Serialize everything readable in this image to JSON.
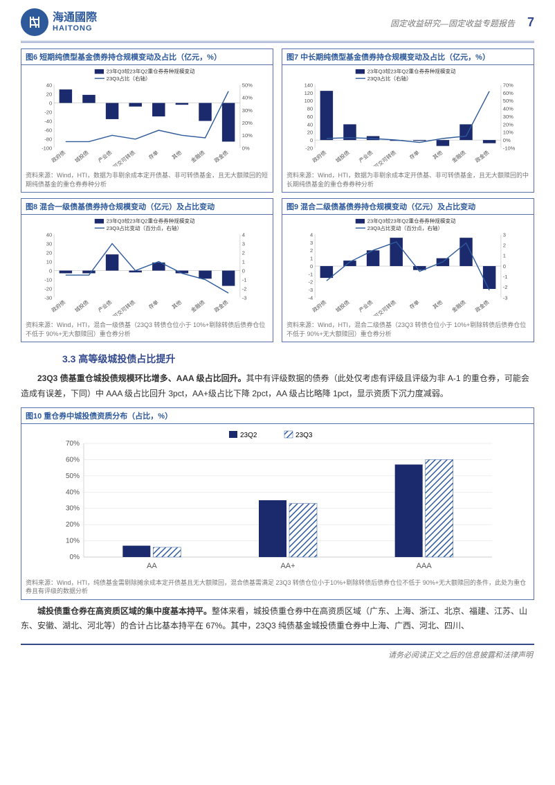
{
  "header": {
    "brand_cn": "海通國際",
    "brand_en": "HAITONG",
    "doc_title": "固定收益研究—固定收益专题报告",
    "page_no": "7"
  },
  "colors": {
    "brand": "#2e5a9c",
    "bar": "#1a2a6c",
    "line": "#2e5a9c",
    "border": "#5a6fb0",
    "q2": "#1a2a6c",
    "q3_pattern_line": "#2e5a9c"
  },
  "charts_small": {
    "categories": [
      "政府债",
      "城投债",
      "产业债",
      "可交可转债",
      "存单",
      "其他",
      "金融债",
      "政金债"
    ],
    "c6": {
      "title": "图6  短期纯债型基金债券持仓规模变动及占比（亿元，%）",
      "legend_bar": "23年Q3较23年Q2重仓券券种规模变动",
      "legend_line": "23Q3占比（右轴）",
      "left_ticks": [
        40,
        20,
        0,
        -20,
        -40,
        -60,
        -80,
        -100
      ],
      "right_ticks": [
        "50%",
        "40%",
        "30%",
        "20%",
        "10%",
        "0%"
      ],
      "bars": [
        30,
        18,
        -36,
        -8,
        -30,
        -4,
        -40,
        -86
      ],
      "line": [
        5,
        5,
        10,
        7,
        14,
        10,
        8,
        45
      ],
      "source": "资料来源：Wind，HTI，数据为非剔余成本定开债基、非可转债基金，且无大额赎回的短期纯债基金的重仓券券种分析"
    },
    "c7": {
      "title": "图7  中长期纯债型基金债券持仓规模变动及占比（亿元，%）",
      "legend_bar": "23年Q3较23年Q2重仓券券种规模变动",
      "legend_line": "23Q3占比（右轴）",
      "left_ticks": [
        140,
        120,
        100,
        80,
        60,
        40,
        20,
        0,
        -20
      ],
      "right_ticks": [
        "70%",
        "60%",
        "50%",
        "40%",
        "30%",
        "20%",
        "10%",
        "0%",
        "-10%"
      ],
      "bars": [
        125,
        40,
        10,
        -2,
        -2,
        -15,
        40,
        -8
      ],
      "line": [
        2,
        3,
        2,
        0,
        -3,
        2,
        5,
        62
      ],
      "source": "资料来源：Wind，HTI，数据为非剔余成本定开债基、非可转债基金，且无大额赎回的中长期纯债基金的重仓券券种分析"
    },
    "c8": {
      "title": "图8  混合一级债基债券持仓规模变动（亿元）及占比变动",
      "legend_bar": "23年Q3较23年Q2重仓券券种规模变动",
      "legend_line": "23Q3占比变动（百分点，右轴）",
      "left_ticks": [
        40,
        30,
        20,
        10,
        0,
        -10,
        -20,
        -30
      ],
      "right_ticks": [
        4,
        3,
        2,
        1,
        0,
        -1,
        -2,
        -3
      ],
      "bars": [
        -3,
        -3,
        18,
        -2,
        9,
        -3,
        -9,
        -17
      ],
      "line": [
        -0.5,
        -0.5,
        3,
        0,
        1,
        -0.3,
        -1,
        -2.5
      ],
      "source": "资料来源：Wind，HTI，混合一级债基（23Q3 转债仓位小于 10%+剔除转债后债券仓位不低于 90%+无大额赎回）重仓券分析"
    },
    "c9": {
      "title": "图9  混合二级债基债券持仓规模变动（亿元）及占比变动",
      "legend_bar": "23年Q3较23年Q2重仓券券种规模变动",
      "legend_line": "23Q3占比变动（百分点，右轴）",
      "left_ticks": [
        4,
        3,
        2,
        1,
        0,
        -1,
        -2,
        -3,
        -4
      ],
      "right_ticks": [
        3,
        2,
        1,
        0,
        -1,
        -2,
        -3
      ],
      "bars": [
        -1.5,
        0.7,
        2,
        3.6,
        -0.5,
        1,
        3.6,
        -2.9
      ],
      "line": [
        -1.4,
        0.4,
        1.5,
        2.3,
        -0.5,
        0.4,
        2.2,
        -2.3
      ],
      "source": "资料来源：Wind，HTI，混合二级债基（23Q3 转债仓位小于 10%+剔除转债后债券仓位不低于 90%+无大额赎回）重仓券分析"
    }
  },
  "section": {
    "h": "3.3 高等级城投债占比提升"
  },
  "para1": {
    "lead": "23Q3 债基重仓城投债规模环比增多、AAA 级占比回升。",
    "rest": "其中有评级数据的债券（此处仅考虑有评级且评级为非 A-1 的重仓券，可能会造成有误差，下同）中 AAA 级占比回升 3pct，AA+级占比下降 2pct，AA 级占比略降 1pct，显示资质下沉力度减弱。"
  },
  "chart10": {
    "title": "图10 重仓券中城投债资质分布（占比，%）",
    "legend_q2": "23Q2",
    "legend_q3": "23Q3",
    "y_ticks": [
      "70%",
      "60%",
      "50%",
      "40%",
      "30%",
      "20%",
      "10%",
      "0%"
    ],
    "categories": [
      "AA",
      "AA+",
      "AAA"
    ],
    "q2": [
      7,
      35,
      57
    ],
    "q3": [
      6,
      33,
      60
    ],
    "source": "资料来源：Wind，HTI，纯债基金需剔除摊余成本定开债基且无大额赎回，混合债基需满足 23Q3 转债仓位小于10%+剔除转债后债券仓位不低于 90%+无大额赎回的条件，此处为重仓券且有评级的数据分析"
  },
  "para2": {
    "lead": "城投债重仓券在高资质区域的集中度基本持平。",
    "rest": "整体来看，城投债重仓券中在高资质区域（广东、上海、浙江、北京、福建、江苏、山东、安徽、湖北、河北等）的合计占比基本持平在 67%。其中，23Q3 纯债基金城投债重仓券中上海、广西、河北、四川、"
  },
  "footer": "请务必阅读正文之后的信息披露和法律声明"
}
